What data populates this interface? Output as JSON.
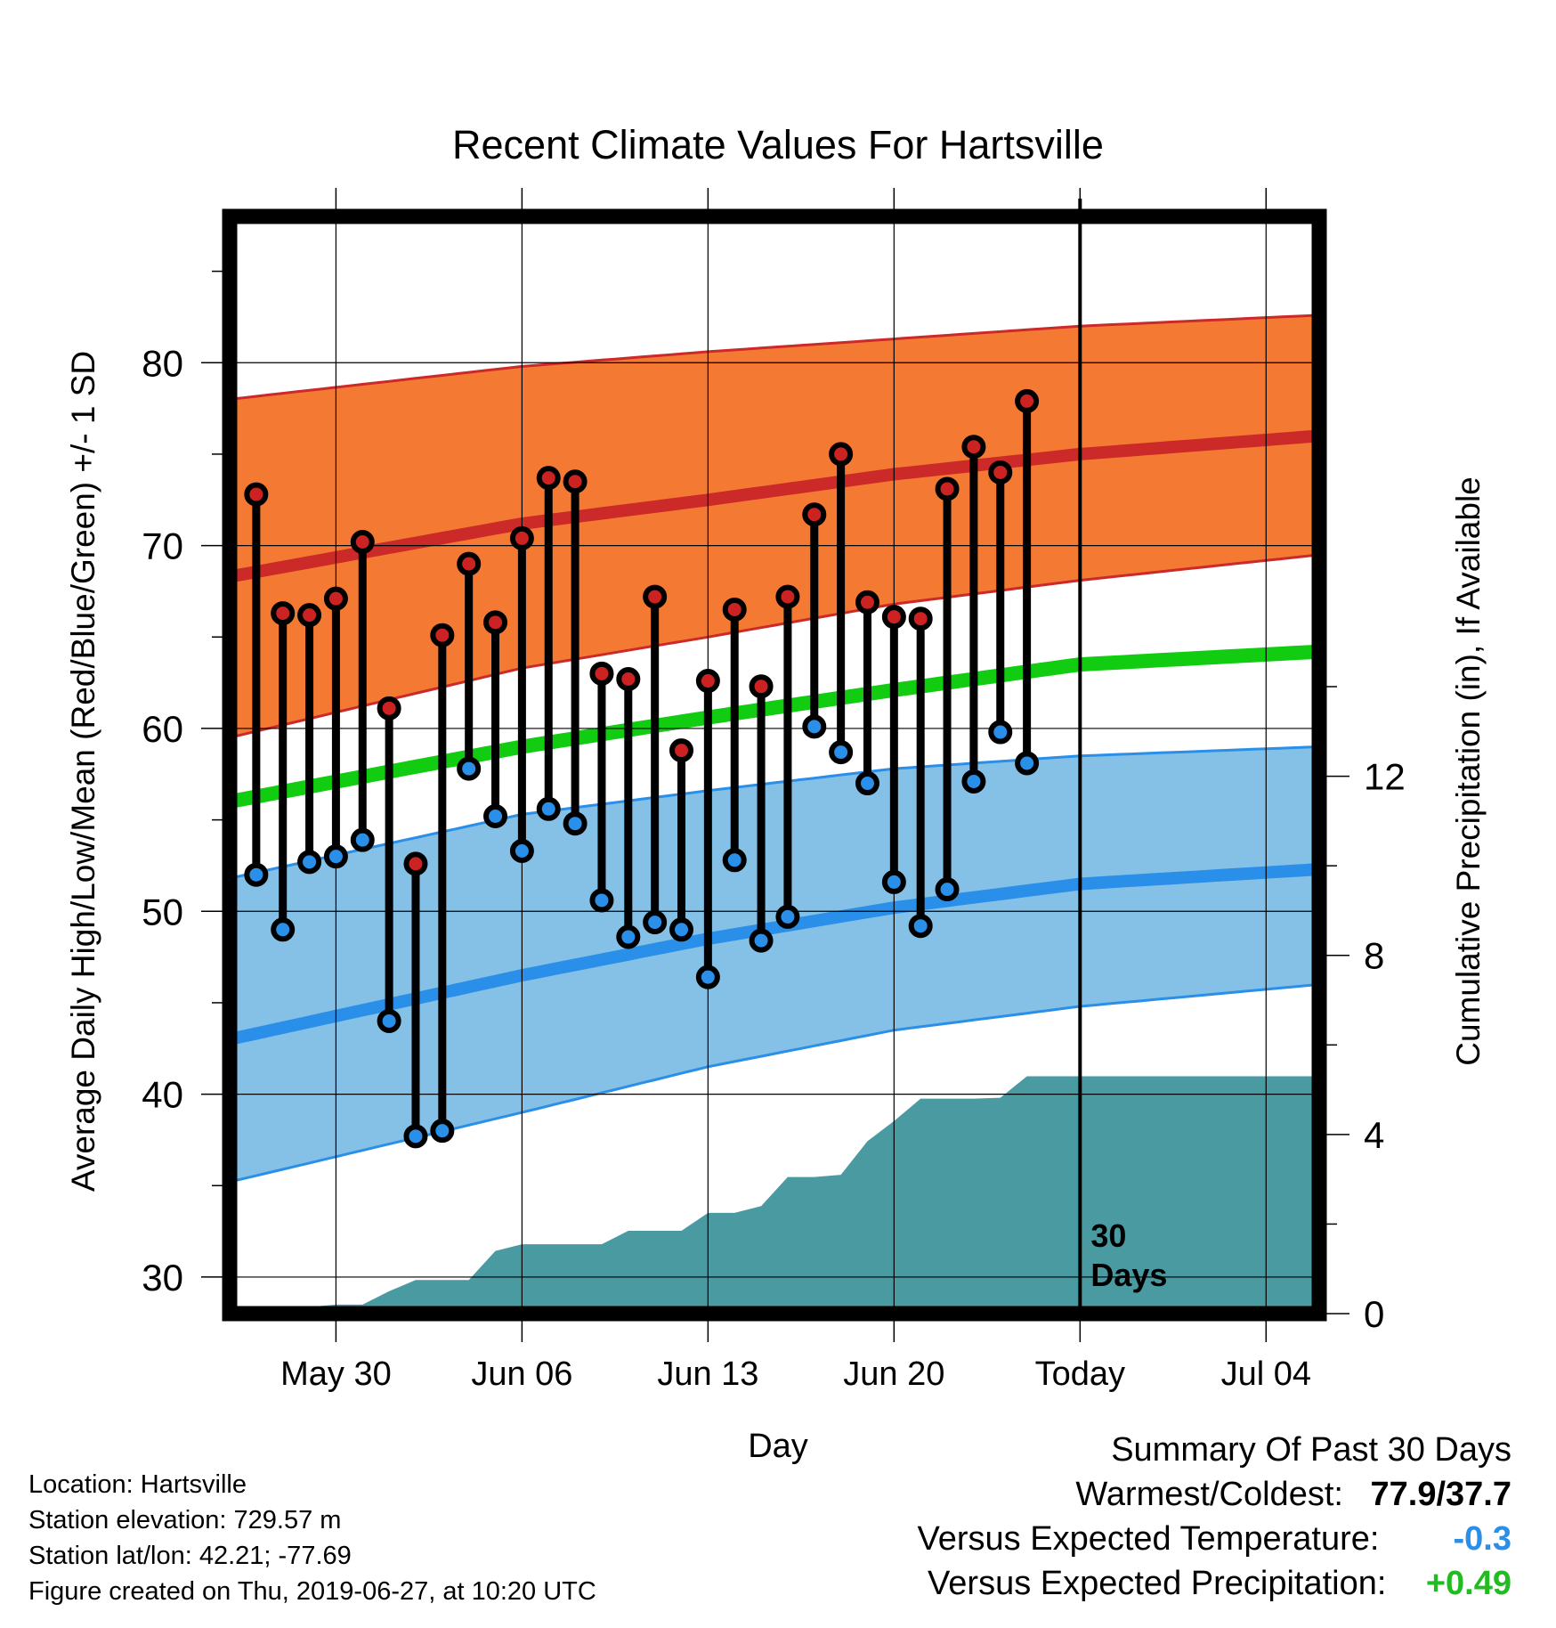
{
  "chart_data": {
    "type": "line",
    "title": "Recent Climate Values For Hartsville",
    "xlabel": "Day",
    "ylabel": "Average Daily High/Low/Mean (Red/Blue/Green) +/- 1 SD",
    "y2label": "Cumulative Precipitation (in), If Available",
    "ylim": [
      28,
      88
    ],
    "y2lim": [
      0,
      24.5
    ],
    "y_ticks": [
      30,
      40,
      50,
      60,
      70,
      80
    ],
    "y2_ticks": [
      0,
      4,
      8,
      12
    ],
    "x_range": [
      "2019-05-26",
      "2019-07-06"
    ],
    "x_ticks": [
      {
        "date": "2019-05-30",
        "label": "May 30"
      },
      {
        "date": "2019-06-06",
        "label": "Jun 06"
      },
      {
        "date": "2019-06-13",
        "label": "Jun 13"
      },
      {
        "date": "2019-06-20",
        "label": "Jun 20"
      },
      {
        "date": "2019-06-27",
        "label": "Today"
      },
      {
        "date": "2019-07-04",
        "label": "Jul 04"
      }
    ],
    "today_date": "2019-06-27",
    "today_annotation": "30 Days",
    "grid": true,
    "normals": {
      "dates": [
        "2019-05-26",
        "2019-06-06",
        "2019-06-13",
        "2019-06-20",
        "2019-06-27",
        "2019-07-06"
      ],
      "high_upper": [
        78.0,
        79.8,
        80.6,
        81.3,
        82.0,
        82.6
      ],
      "high_mean": [
        68.3,
        71.2,
        72.5,
        73.9,
        75.0,
        76.0
      ],
      "high_lower": [
        59.5,
        63.3,
        65.0,
        66.8,
        68.1,
        69.5
      ],
      "mean": [
        56.0,
        59.0,
        60.6,
        62.1,
        63.5,
        64.2
      ],
      "low_upper": [
        51.8,
        55.3,
        56.6,
        57.8,
        58.5,
        59.0
      ],
      "low_mean": [
        43.0,
        46.5,
        48.5,
        50.2,
        51.5,
        52.3
      ],
      "low_lower": [
        35.2,
        39.0,
        41.5,
        43.5,
        44.8,
        46.0
      ]
    },
    "series": [
      {
        "name": "High",
        "x": [
          "2019-05-27",
          "2019-05-28",
          "2019-05-29",
          "2019-05-30",
          "2019-05-31",
          "2019-06-01",
          "2019-06-02",
          "2019-06-03",
          "2019-06-04",
          "2019-06-05",
          "2019-06-06",
          "2019-06-07",
          "2019-06-08",
          "2019-06-09",
          "2019-06-10",
          "2019-06-11",
          "2019-06-12",
          "2019-06-13",
          "2019-06-14",
          "2019-06-15",
          "2019-06-16",
          "2019-06-17",
          "2019-06-18",
          "2019-06-19",
          "2019-06-20",
          "2019-06-21",
          "2019-06-22",
          "2019-06-23",
          "2019-06-24",
          "2019-06-25",
          "2019-06-26"
        ],
        "values": [
          72.8,
          66.3,
          66.2,
          67.1,
          70.2,
          61.1,
          52.6,
          65.1,
          69.0,
          65.8,
          70.4,
          73.7,
          73.5,
          63.0,
          62.7,
          67.2,
          58.8,
          62.6,
          66.5,
          62.3,
          67.2,
          71.7,
          75.0,
          66.9,
          66.1,
          66.0,
          73.1,
          75.4,
          74.0,
          77.9,
          null
        ],
        "color": "#cc2222"
      },
      {
        "name": "Low",
        "x": [
          "2019-05-27",
          "2019-05-28",
          "2019-05-29",
          "2019-05-30",
          "2019-05-31",
          "2019-06-01",
          "2019-06-02",
          "2019-06-03",
          "2019-06-04",
          "2019-06-05",
          "2019-06-06",
          "2019-06-07",
          "2019-06-08",
          "2019-06-09",
          "2019-06-10",
          "2019-06-11",
          "2019-06-12",
          "2019-06-13",
          "2019-06-14",
          "2019-06-15",
          "2019-06-16",
          "2019-06-17",
          "2019-06-18",
          "2019-06-19",
          "2019-06-20",
          "2019-06-21",
          "2019-06-22",
          "2019-06-23",
          "2019-06-24",
          "2019-06-25",
          "2019-06-26"
        ],
        "values": [
          52.0,
          49.0,
          52.7,
          53.0,
          53.9,
          44.0,
          37.7,
          38.0,
          57.8,
          55.2,
          53.3,
          55.6,
          54.8,
          50.6,
          48.6,
          49.4,
          49.0,
          46.4,
          52.8,
          48.4,
          49.7,
          60.1,
          58.7,
          57.0,
          51.6,
          49.2,
          51.2,
          57.1,
          59.8,
          58.1,
          null
        ],
        "color": "#2a8fe8"
      },
      {
        "name": "Cumulative Precipitation",
        "x": [
          "2019-05-26",
          "2019-05-27",
          "2019-05-28",
          "2019-05-29",
          "2019-05-30",
          "2019-05-31",
          "2019-06-01",
          "2019-06-02",
          "2019-06-03",
          "2019-06-04",
          "2019-06-05",
          "2019-06-06",
          "2019-06-07",
          "2019-06-08",
          "2019-06-09",
          "2019-06-10",
          "2019-06-11",
          "2019-06-12",
          "2019-06-13",
          "2019-06-14",
          "2019-06-15",
          "2019-06-16",
          "2019-06-17",
          "2019-06-18",
          "2019-06-19",
          "2019-06-20",
          "2019-06-21",
          "2019-06-22",
          "2019-06-23",
          "2019-06-24",
          "2019-06-25",
          "2019-06-26",
          "2019-06-27",
          "2019-07-06"
        ],
        "values": [
          0.0,
          0.1,
          0.1,
          0.15,
          0.2,
          0.2,
          0.5,
          0.75,
          0.75,
          0.75,
          1.4,
          1.55,
          1.55,
          1.55,
          1.55,
          1.85,
          1.85,
          1.85,
          2.25,
          2.25,
          2.4,
          3.05,
          3.05,
          3.1,
          3.85,
          4.3,
          4.8,
          4.8,
          4.8,
          4.82,
          5.3,
          5.3,
          5.3,
          5.3
        ],
        "color": "#4a9aa2"
      }
    ]
  },
  "footer": {
    "location": "Location: Hartsville",
    "elevation": "Station elevation: 729.57 m",
    "latlon": "Station lat/lon: 42.21; -77.69",
    "created": "Figure created on Thu, 2019-06-27, at 10:20 UTC"
  },
  "summary": {
    "heading": "Summary Of Past 30 Days",
    "warmest_label": "Warmest/Coldest:",
    "warmest_value": "77.9/37.7",
    "temp_label": "Versus Expected Temperature:",
    "temp_value": "-0.3",
    "precip_label": "Versus Expected Precipitation:",
    "precip_value": "+0.49",
    "colors": {
      "temp": "#2a8fe8",
      "precip": "#22bb22"
    }
  },
  "colors": {
    "high_band": "#f47a33",
    "high_line": "#cc2929",
    "low_band": "#85c1e6",
    "low_line": "#2a8fe8",
    "mean_line": "#11cc11",
    "precip_fill": "#4a9aa2",
    "high_marker": "#cc2222",
    "low_marker": "#2a8fe8"
  }
}
